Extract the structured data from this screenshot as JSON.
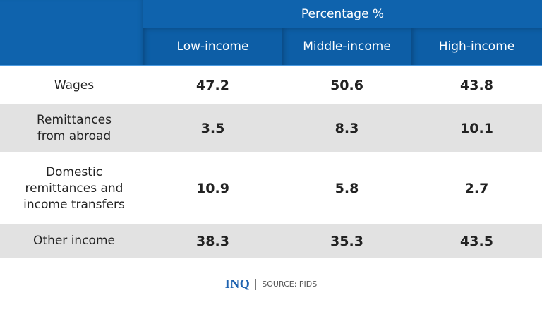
{
  "chart_data": {
    "type": "table",
    "header_group": "Percentage %",
    "columns": [
      "Low-income",
      "Middle-income",
      "High-income"
    ],
    "rows": [
      {
        "label": "Wages",
        "values": [
          "47.2",
          "50.6",
          "43.8"
        ]
      },
      {
        "label": "Remittances from abroad",
        "values": [
          "3.5",
          "8.3",
          "10.1"
        ]
      },
      {
        "label": "Domestic remittances and income transfers",
        "values": [
          "10.9",
          "5.8",
          "2.7"
        ]
      },
      {
        "label": "Other income",
        "values": [
          "38.3",
          "35.3",
          "43.5"
        ]
      }
    ]
  },
  "footer": {
    "logo": "INQ",
    "source": "SOURCE: PIDS"
  },
  "colors": {
    "header": "#0f63ad",
    "stripe": "#e2e2e2",
    "logo": "#1f63b0"
  }
}
